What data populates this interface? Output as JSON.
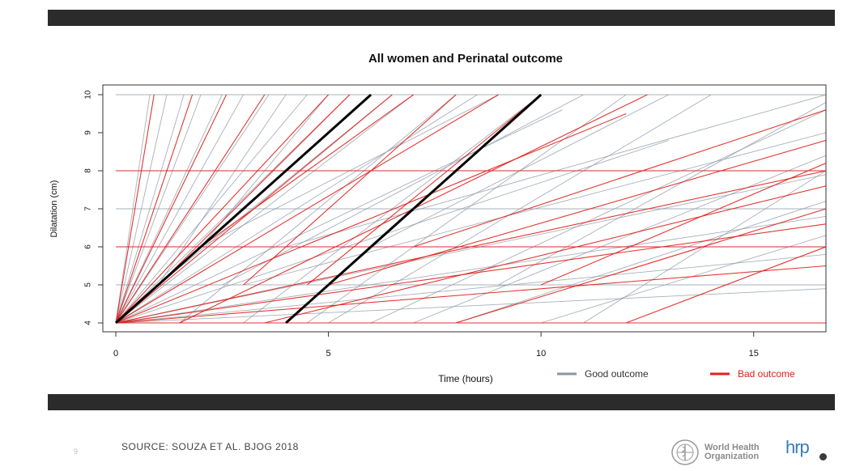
{
  "chart_data": {
    "type": "line",
    "title": "All women and Perinatal outcome",
    "xlabel": "Time (hours)",
    "ylabel": "Dilatation (cm)",
    "xlim": [
      0,
      16.7
    ],
    "ylim": [
      4,
      10
    ],
    "xticks": [
      "0",
      "5",
      "10",
      "15"
    ],
    "yticks": [
      "4",
      "5",
      "6",
      "7",
      "8",
      "9",
      "10"
    ],
    "grid": false,
    "legend_position": "bottom-right",
    "legend": [
      {
        "label": "Good outcome",
        "color": "#8a96a3"
      },
      {
        "label": "Bad outcome",
        "color": "#e0201c"
      }
    ],
    "reference_lines": [
      {
        "x": [
          0,
          6
        ],
        "y": [
          4,
          10
        ],
        "color": "#000000"
      },
      {
        "x": [
          4,
          10
        ],
        "y": [
          4,
          10
        ],
        "color": "#000000"
      }
    ],
    "series": [
      {
        "name": "Good outcome",
        "color": "#8a96a3",
        "lines": [
          {
            "x": [
              0,
              0.8
            ],
            "y": [
              4,
              10
            ]
          },
          {
            "x": [
              0,
              1.2
            ],
            "y": [
              4,
              10
            ]
          },
          {
            "x": [
              0,
              1.6
            ],
            "y": [
              4,
              10
            ]
          },
          {
            "x": [
              0,
              2.0
            ],
            "y": [
              4,
              10
            ]
          },
          {
            "x": [
              0,
              2.5
            ],
            "y": [
              4,
              10
            ]
          },
          {
            "x": [
              0,
              3.0
            ],
            "y": [
              4,
              10
            ]
          },
          {
            "x": [
              0,
              3.6
            ],
            "y": [
              4,
              10
            ]
          },
          {
            "x": [
              0,
              4.5
            ],
            "y": [
              4,
              10
            ]
          },
          {
            "x": [
              0,
              5.5
            ],
            "y": [
              4,
              10
            ]
          },
          {
            "x": [
              0,
              7.0
            ],
            "y": [
              4,
              10
            ]
          },
          {
            "x": [
              0,
              8.5
            ],
            "y": [
              4,
              10
            ]
          },
          {
            "x": [
              0,
              10.5
            ],
            "y": [
              4,
              9.6
            ]
          },
          {
            "x": [
              0,
              13.0
            ],
            "y": [
              4,
              8.8
            ]
          },
          {
            "x": [
              0,
              16.7
            ],
            "y": [
              4,
              7.9
            ]
          },
          {
            "x": [
              0,
              16.7
            ],
            "y": [
              4,
              6.8
            ]
          },
          {
            "x": [
              0,
              16.7
            ],
            "y": [
              4,
              5.8
            ]
          },
          {
            "x": [
              0,
              16.7
            ],
            "y": [
              4,
              4.9
            ]
          },
          {
            "x": [
              1.0,
              4.0
            ],
            "y": [
              5,
              10
            ]
          },
          {
            "x": [
              1.0,
              6.5
            ],
            "y": [
              5,
              10
            ]
          },
          {
            "x": [
              2.0,
              5.0
            ],
            "y": [
              6,
              10
            ]
          },
          {
            "x": [
              2.0,
              9.0
            ],
            "y": [
              6,
              10
            ]
          },
          {
            "x": [
              3.0,
              10.0
            ],
            "y": [
              4,
              10
            ]
          },
          {
            "x": [
              4.5,
              12.0
            ],
            "y": [
              4,
              10
            ]
          },
          {
            "x": [
              5.0,
              14.0
            ],
            "y": [
              4,
              10
            ]
          },
          {
            "x": [
              6.0,
              16.7
            ],
            "y": [
              4,
              9.6
            ]
          },
          {
            "x": [
              7.0,
              16.7
            ],
            "y": [
              4,
              8.4
            ]
          },
          {
            "x": [
              8.0,
              16.7
            ],
            "y": [
              4,
              7.2
            ]
          },
          {
            "x": [
              10.0,
              16.7
            ],
            "y": [
              4,
              6.3
            ]
          },
          {
            "x": [
              3.0,
              16.7
            ],
            "y": [
              5,
              9.0
            ]
          },
          {
            "x": [
              4.0,
              16.7
            ],
            "y": [
              6,
              10
            ]
          },
          {
            "x": [
              1.5,
              8.0
            ],
            "y": [
              4,
              10
            ]
          },
          {
            "x": [
              2.5,
              11.0
            ],
            "y": [
              5,
              10
            ]
          },
          {
            "x": [
              6.0,
              13.0
            ],
            "y": [
              6,
              10
            ]
          },
          {
            "x": [
              9.0,
              16.7
            ],
            "y": [
              5,
              9.8
            ]
          },
          {
            "x": [
              11.0,
              16.7
            ],
            "y": [
              4,
              8.0
            ]
          },
          {
            "x": [
              0,
              16.7
            ],
            "y": [
              7,
              7
            ]
          },
          {
            "x": [
              0,
              16.7
            ],
            "y": [
              8,
              8
            ]
          },
          {
            "x": [
              0,
              16.7
            ],
            "y": [
              6,
              6
            ]
          },
          {
            "x": [
              0,
              16.7
            ],
            "y": [
              5,
              5
            ]
          },
          {
            "x": [
              0,
              16.7
            ],
            "y": [
              10,
              10
            ]
          }
        ]
      },
      {
        "name": "Bad outcome",
        "color": "#e0201c",
        "lines": [
          {
            "x": [
              0,
              0.9
            ],
            "y": [
              4,
              10
            ]
          },
          {
            "x": [
              0,
              1.8
            ],
            "y": [
              4,
              10
            ]
          },
          {
            "x": [
              0,
              2.6
            ],
            "y": [
              4,
              10
            ]
          },
          {
            "x": [
              0,
              3.5
            ],
            "y": [
              4,
              10
            ]
          },
          {
            "x": [
              0,
              5.0
            ],
            "y": [
              4,
              10
            ]
          },
          {
            "x": [
              0,
              6.5
            ],
            "y": [
              4,
              10
            ]
          },
          {
            "x": [
              0,
              9.0
            ],
            "y": [
              4,
              10
            ]
          },
          {
            "x": [
              0,
              12.0
            ],
            "y": [
              4,
              9.5
            ]
          },
          {
            "x": [
              0,
              16.7
            ],
            "y": [
              4,
              8.0
            ]
          },
          {
            "x": [
              0,
              16.7
            ],
            "y": [
              4,
              6.6
            ]
          },
          {
            "x": [
              0,
              16.7
            ],
            "y": [
              4,
              5.5
            ]
          },
          {
            "x": [
              1.0,
              5.5
            ],
            "y": [
              5,
              10
            ]
          },
          {
            "x": [
              2.0,
              7.0
            ],
            "y": [
              6,
              10
            ]
          },
          {
            "x": [
              3.0,
              8.0
            ],
            "y": [
              5,
              10
            ]
          },
          {
            "x": [
              4.5,
              10.0
            ],
            "y": [
              5,
              10
            ]
          },
          {
            "x": [
              5.0,
              16.7
            ],
            "y": [
              5,
              8.8
            ]
          },
          {
            "x": [
              7.0,
              16.7
            ],
            "y": [
              6,
              9.6
            ]
          },
          {
            "x": [
              8.0,
              16.7
            ],
            "y": [
              4,
              7.0
            ]
          },
          {
            "x": [
              10.0,
              16.7
            ],
            "y": [
              5,
              8.2
            ]
          },
          {
            "x": [
              12.0,
              16.7
            ],
            "y": [
              4,
              6.0
            ]
          },
          {
            "x": [
              1.5,
              12.5
            ],
            "y": [
              4,
              10
            ]
          },
          {
            "x": [
              3.5,
              16.7
            ],
            "y": [
              4,
              7.6
            ]
          },
          {
            "x": [
              0,
              16.7
            ],
            "y": [
              6,
              6
            ]
          },
          {
            "x": [
              0,
              16.7
            ],
            "y": [
              8,
              8
            ]
          },
          {
            "x": [
              0,
              16.7
            ],
            "y": [
              4,
              4
            ]
          }
        ]
      }
    ]
  },
  "footer": {
    "source": "SOURCE: SOUZA ET AL. BJOG 2018",
    "slide_number": "9",
    "who_line1": "World Health",
    "who_line2": "Organization",
    "hrp": "hrp",
    "who_logo_icon": "who-emblem-icon",
    "hrp_logo_icon": "hrp-dot-icon"
  }
}
